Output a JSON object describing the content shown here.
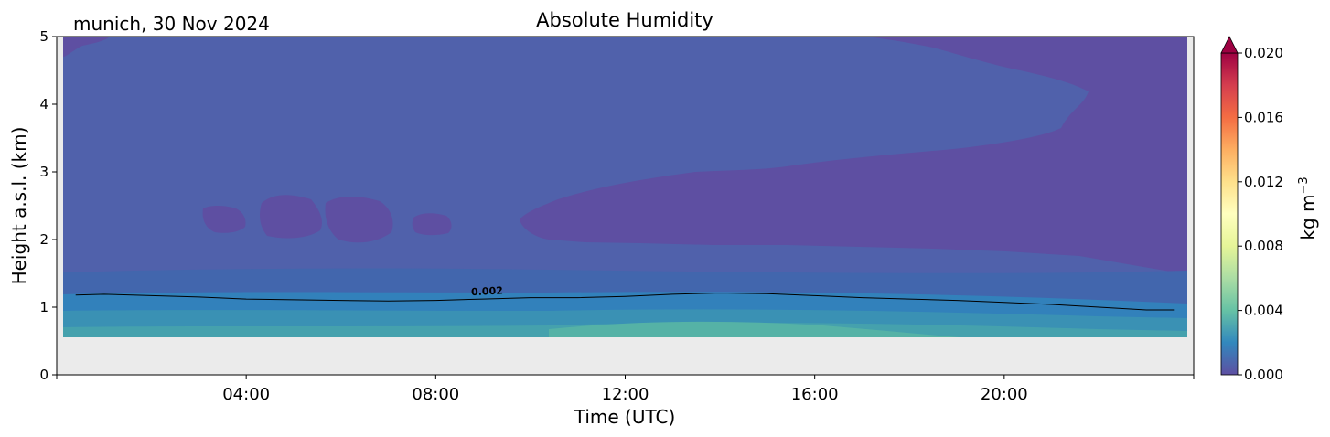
{
  "chart_data": {
    "type": "heatmap",
    "title": "Absolute Humidity",
    "subtitle": "munich, 30 Nov 2024",
    "xlabel": "Time (UTC)",
    "ylabel": "Height a.s.l. (km)",
    "x_range_hours": [
      0,
      24
    ],
    "x_ticks": [
      "04:00",
      "08:00",
      "12:00",
      "16:00",
      "20:00"
    ],
    "x_tick_hours": [
      4,
      8,
      12,
      16,
      20
    ],
    "ylim": [
      0,
      5
    ],
    "y_ticks": [
      "0",
      "1",
      "2",
      "3",
      "4",
      "5"
    ],
    "y_tick_values": [
      0,
      1,
      2,
      3,
      4,
      5
    ],
    "grid": false,
    "colorbar": {
      "label": "kg m",
      "label_exponent": "−3",
      "range": [
        0,
        0.02
      ],
      "extend": "max",
      "ticks": [
        "0.000",
        "0.004",
        "0.008",
        "0.012",
        "0.016",
        "0.020"
      ],
      "tick_values": [
        0,
        0.004,
        0.008,
        0.012,
        0.016,
        0.02
      ],
      "colormap": "Spectral_r",
      "colors": [
        "#5e4fa2",
        "#3288bd",
        "#66c2a5",
        "#abdda4",
        "#e6f598",
        "#ffffbf",
        "#fee08b",
        "#fdae61",
        "#f46d43",
        "#d53e4f",
        "#9e0142"
      ]
    },
    "data_coverage": {
      "bottom_km": 0.55,
      "missing_color": "#ebebeb"
    },
    "contour": {
      "level_label": "0.002",
      "hours": [
        0.4,
        1,
        2,
        3,
        4,
        5,
        6,
        7,
        8,
        9,
        10,
        11,
        12,
        13,
        14,
        15,
        16,
        17,
        18,
        19,
        20,
        21,
        22,
        23,
        23.6
      ],
      "heights_km": [
        1.18,
        1.19,
        1.17,
        1.15,
        1.12,
        1.11,
        1.1,
        1.09,
        1.1,
        1.12,
        1.14,
        1.14,
        1.16,
        1.19,
        1.21,
        1.2,
        1.17,
        1.14,
        1.12,
        1.1,
        1.07,
        1.04,
        1.0,
        0.96,
        0.96
      ]
    },
    "regions": [
      {
        "value_range": [
          0.0,
          0.001
        ],
        "description_band": "upper",
        "top_hours": [
          0.4,
          2,
          4,
          6,
          8,
          10,
          12,
          14,
          16,
          18,
          20,
          21,
          22,
          23.6
        ]
      }
    ]
  }
}
